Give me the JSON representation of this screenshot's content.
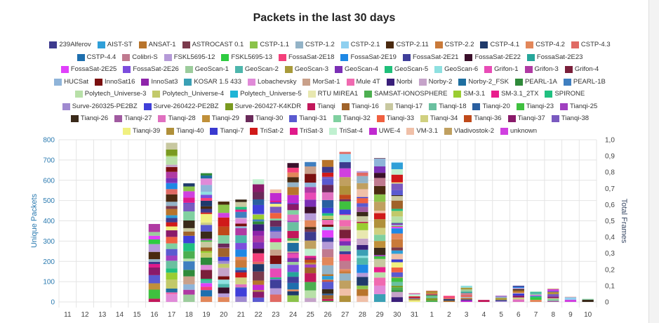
{
  "chart_data": {
    "type": "bar",
    "stacked": true,
    "title": "Packets in the last 30 days",
    "ylabel": "Unique Packets",
    "y2label": "Total Frames",
    "ylim": [
      0,
      800
    ],
    "y2lim": [
      0,
      1
    ],
    "yticks": [
      "0",
      "100",
      "200",
      "300",
      "400",
      "500",
      "600",
      "700",
      "800"
    ],
    "y2ticks": [
      "0",
      "0,1",
      "0,2",
      "0,3",
      "0,4",
      "0,5",
      "0,6",
      "0,7",
      "0,8",
      "0,9",
      "1,0"
    ],
    "grid": true,
    "legend_position": "top",
    "categories": [
      "11",
      "12",
      "13",
      "14",
      "15",
      "16",
      "17",
      "18",
      "19",
      "20",
      "21",
      "22",
      "23",
      "24",
      "25",
      "26",
      "27",
      "28",
      "29",
      "30",
      "31",
      "1",
      "2",
      "3",
      "4",
      "5",
      "6",
      "7",
      "8",
      "9",
      "10"
    ],
    "totals": [
      0,
      0,
      0,
      0,
      0,
      385,
      785,
      585,
      635,
      495,
      505,
      605,
      555,
      685,
      690,
      700,
      740,
      645,
      710,
      690,
      45,
      55,
      30,
      80,
      10,
      30,
      80,
      50,
      65,
      25,
      15
    ],
    "series": [
      {
        "name": "239Alferov",
        "color": "#3d3a8e"
      },
      {
        "name": "AIST-ST",
        "color": "#2f9fd8"
      },
      {
        "name": "ANSAT-1",
        "color": "#b8742b"
      },
      {
        "name": "ASTROCAST 0.1",
        "color": "#7b3a4c"
      },
      {
        "name": "CSTP-1.1",
        "color": "#8bc34a"
      },
      {
        "name": "CSTP-1.2",
        "color": "#93b3c7"
      },
      {
        "name": "CSTP-2.1",
        "color": "#8fd0f0"
      },
      {
        "name": "CSTP-2.11",
        "color": "#4a2a10"
      },
      {
        "name": "CSTP-2.2",
        "color": "#c97a3a"
      },
      {
        "name": "CSTP-4.1",
        "color": "#1f3a6b"
      },
      {
        "name": "CSTP-4.2",
        "color": "#e2875a"
      },
      {
        "name": "CSTP-4.3",
        "color": "#e06a64"
      },
      {
        "name": "CSTP-4.4",
        "color": "#1e6fae"
      },
      {
        "name": "Colibri-S",
        "color": "#c07a8f"
      },
      {
        "name": "FSKL5695-12",
        "color": "#b59ad8"
      },
      {
        "name": "FSKL5695-13",
        "color": "#2ecc40"
      },
      {
        "name": "FossaSat-2E18",
        "color": "#f43f7a"
      },
      {
        "name": "FossaSat-2E19",
        "color": "#1e88e5"
      },
      {
        "name": "FossaSat-2E21",
        "color": "#3f3f9a"
      },
      {
        "name": "FossaSat-2E22",
        "color": "#3a0f2a"
      },
      {
        "name": "FossaSat-2E23",
        "color": "#26a69a"
      },
      {
        "name": "FossaSat-2E25",
        "color": "#e040fb"
      },
      {
        "name": "FossaSat-2E26",
        "color": "#7c4ddd"
      },
      {
        "name": "GeoScan-1",
        "color": "#9ccc9c"
      },
      {
        "name": "GeoScan-2",
        "color": "#4db6ac"
      },
      {
        "name": "GeoScan-3",
        "color": "#a89a3a"
      },
      {
        "name": "GeoScan-4",
        "color": "#7b2fb5"
      },
      {
        "name": "GeoScan-5",
        "color": "#1fbf7a"
      },
      {
        "name": "GeoScan-6",
        "color": "#8ee0e0"
      },
      {
        "name": "Grifon-1",
        "color": "#e84bb6"
      },
      {
        "name": "Grifon-3",
        "color": "#b03aa3"
      },
      {
        "name": "Grifon-4",
        "color": "#7a1f3a"
      },
      {
        "name": "HUCSat",
        "color": "#8fb4d9"
      },
      {
        "name": "InnoSat16",
        "color": "#7a0f0f"
      },
      {
        "name": "InnoSat3",
        "color": "#8e24aa"
      },
      {
        "name": "KOSAR 1.5 433",
        "color": "#3aa0b5"
      },
      {
        "name": "Lobachevsky",
        "color": "#e08ad8"
      },
      {
        "name": "MorSat-1",
        "color": "#c9a08a"
      },
      {
        "name": "Mule 4T",
        "color": "#f06ab0"
      },
      {
        "name": "Norbi",
        "color": "#3a1f7a"
      },
      {
        "name": "Norby-2",
        "color": "#c5a3c9"
      },
      {
        "name": "Norby-2_FSK",
        "color": "#1f6fa0"
      },
      {
        "name": "PEARL-1A",
        "color": "#2f8a3a"
      },
      {
        "name": "PEARL-1B",
        "color": "#3f7fc0"
      },
      {
        "name": "Polytech_Universe-3",
        "color": "#b8e0a8"
      },
      {
        "name": "Polytech_Universe-4",
        "color": "#c2c96a"
      },
      {
        "name": "Polytech_Universe-5",
        "color": "#1fb5d6"
      },
      {
        "name": "RTU MIREA1",
        "color": "#e8e8b0"
      },
      {
        "name": "SAMSAT-IONOSPHERE",
        "color": "#4caf50"
      },
      {
        "name": "SM-3.1",
        "color": "#9acd32"
      },
      {
        "name": "SM-3.1_2TX",
        "color": "#e91e8c"
      },
      {
        "name": "SPIRONE",
        "color": "#20c080"
      },
      {
        "name": "Surve-260325-PE2BZ",
        "color": "#a08ad0"
      },
      {
        "name": "Surve-260422-PE2BZ",
        "color": "#3f3fd9"
      },
      {
        "name": "Surve-260427-K4KDR",
        "color": "#7a9a20"
      },
      {
        "name": "Tianqi",
        "color": "#c2185b"
      },
      {
        "name": "Tianqi-16",
        "color": "#a0632a"
      },
      {
        "name": "Tianqi-17",
        "color": "#c8c8a0"
      },
      {
        "name": "Tianqi-18",
        "color": "#6ac0a0"
      },
      {
        "name": "Tianqi-20",
        "color": "#2a5fa0"
      },
      {
        "name": "Tianqi-23",
        "color": "#3fc03f"
      },
      {
        "name": "Tianqi-25",
        "color": "#a040c0"
      },
      {
        "name": "Tianqi-26",
        "color": "#3a2a1a"
      },
      {
        "name": "Tianqi-27",
        "color": "#a05aa0"
      },
      {
        "name": "Tianqi-28",
        "color": "#e070c0"
      },
      {
        "name": "Tianqi-29",
        "color": "#c0903a"
      },
      {
        "name": "Tianqi-30",
        "color": "#6a2a5a"
      },
      {
        "name": "Tianqi-31",
        "color": "#5a5ad0"
      },
      {
        "name": "Tianqi-32",
        "color": "#80d0a0"
      },
      {
        "name": "Tianqi-33",
        "color": "#f06040"
      },
      {
        "name": "Tianqi-34",
        "color": "#d0d080"
      },
      {
        "name": "Tianqi-36",
        "color": "#c04a1a"
      },
      {
        "name": "Tianqi-37",
        "color": "#8a1a6a"
      },
      {
        "name": "Tianqi-38",
        "color": "#7a5ac0"
      },
      {
        "name": "Tianqi-39",
        "color": "#f0f080"
      },
      {
        "name": "Tianqi-40",
        "color": "#b0903a"
      },
      {
        "name": "Tianqi-7",
        "color": "#3a3ad0"
      },
      {
        "name": "TriSat-2",
        "color": "#d01a1a"
      },
      {
        "name": "TriSat-3",
        "color": "#e01a8a"
      },
      {
        "name": "TriSat-4",
        "color": "#c0f0d0"
      },
      {
        "name": "UWE-4",
        "color": "#c02ad0"
      },
      {
        "name": "VM-3.1",
        "color": "#f0c0a8"
      },
      {
        "name": "Vladivostok-2",
        "color": "#c0a060"
      },
      {
        "name": "unknown",
        "color": "#d040e0"
      }
    ]
  }
}
